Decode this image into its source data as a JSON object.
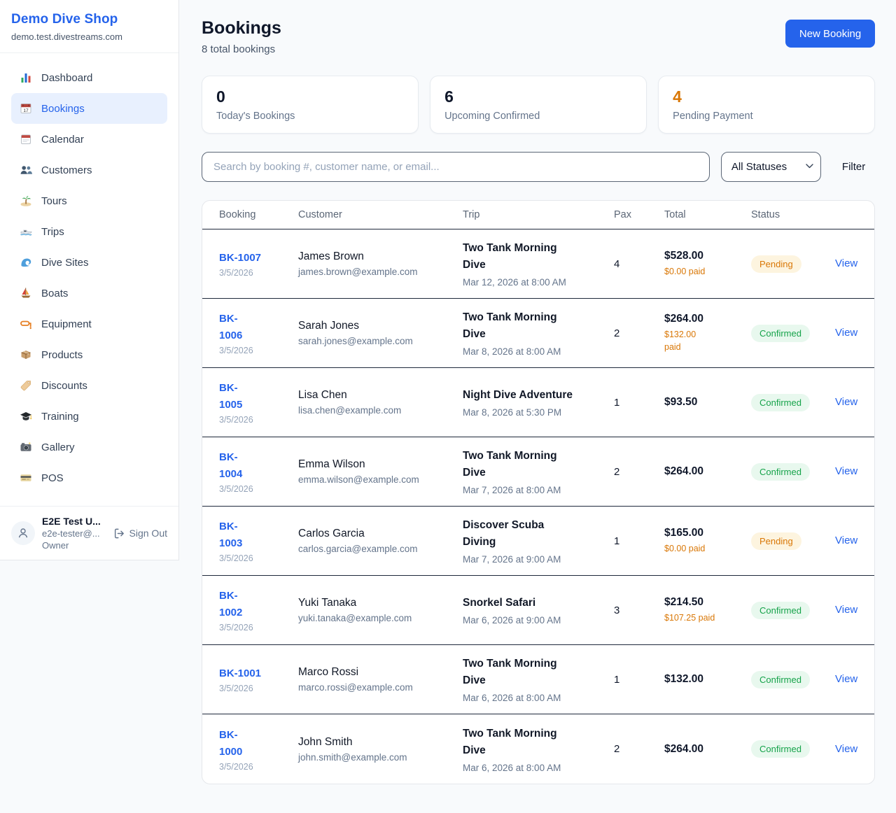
{
  "brand": {
    "name": "Demo Dive Shop",
    "domain": "demo.test.divestreams.com"
  },
  "sidebar": {
    "items": [
      {
        "label": "Dashboard",
        "icon": "bar-chart",
        "active": false
      },
      {
        "label": "Bookings",
        "icon": "calendar-day",
        "active": true
      },
      {
        "label": "Calendar",
        "icon": "calendar-pad",
        "active": false
      },
      {
        "label": "Customers",
        "icon": "people",
        "active": false
      },
      {
        "label": "Tours",
        "icon": "island",
        "active": false
      },
      {
        "label": "Trips",
        "icon": "speedboat",
        "active": false
      },
      {
        "label": "Dive Sites",
        "icon": "wave",
        "active": false
      },
      {
        "label": "Boats",
        "icon": "sailboat",
        "active": false
      },
      {
        "label": "Equipment",
        "icon": "dive-mask",
        "active": false
      },
      {
        "label": "Products",
        "icon": "box",
        "active": false
      },
      {
        "label": "Discounts",
        "icon": "tag",
        "active": false
      },
      {
        "label": "Training",
        "icon": "grad-cap",
        "active": false
      },
      {
        "label": "Gallery",
        "icon": "camera",
        "active": false
      },
      {
        "label": "POS",
        "icon": "credit-card",
        "active": false
      }
    ],
    "user": {
      "name": "E2E Test U...",
      "email": "e2e-tester@...",
      "role": "Owner",
      "sign_out_label": "Sign Out"
    }
  },
  "header": {
    "title": "Bookings",
    "subtitle": "8 total bookings",
    "new_booking_label": "New Booking"
  },
  "stats": [
    {
      "value": "0",
      "label": "Today's Bookings",
      "color": "#0f172a"
    },
    {
      "value": "6",
      "label": "Upcoming Confirmed",
      "color": "#0f172a"
    },
    {
      "value": "4",
      "label": "Pending Payment",
      "color": "#d97706"
    }
  ],
  "toolbar": {
    "search_placeholder": "Search by booking #, customer name, or email...",
    "status_filter": "All Statuses",
    "filter_label": "Filter"
  },
  "table": {
    "columns": [
      "Booking",
      "Customer",
      "Trip",
      "Pax",
      "Total",
      "Status"
    ],
    "view_label": "View",
    "rows": [
      {
        "id": "BK-1007",
        "id_wrap": false,
        "date": "3/5/2026",
        "name": "James Brown",
        "email": "james.brown@example.com",
        "trip": "Two Tank Morning Dive",
        "trip_wrap": true,
        "datetime": "Mar 12, 2026 at 8:00 AM",
        "pax": "4",
        "total": "$528.00",
        "paid": "$0.00 paid",
        "paid_wrap": false,
        "status": "Pending"
      },
      {
        "id": "BK-1006",
        "id_wrap": true,
        "date": "3/5/2026",
        "name": "Sarah Jones",
        "email": "sarah.jones@example.com",
        "trip": "Two Tank Morning Dive",
        "trip_wrap": true,
        "datetime": "Mar 8, 2026 at 8:00 AM",
        "pax": "2",
        "total": "$264.00",
        "paid": "$132.00 paid",
        "paid_wrap": true,
        "status": "Confirmed"
      },
      {
        "id": "BK-1005",
        "id_wrap": true,
        "date": "3/5/2026",
        "name": "Lisa Chen",
        "email": "lisa.chen@example.com",
        "trip": "Night Dive Adventure",
        "trip_wrap": false,
        "datetime": "Mar 8, 2026 at 5:30 PM",
        "pax": "1",
        "total": "$93.50",
        "paid": null,
        "paid_wrap": false,
        "status": "Confirmed"
      },
      {
        "id": "BK-1004",
        "id_wrap": true,
        "date": "3/5/2026",
        "name": "Emma Wilson",
        "email": "emma.wilson@example.com",
        "trip": "Two Tank Morning Dive",
        "trip_wrap": true,
        "datetime": "Mar 7, 2026 at 8:00 AM",
        "pax": "2",
        "total": "$264.00",
        "paid": null,
        "paid_wrap": false,
        "status": "Confirmed"
      },
      {
        "id": "BK-1003",
        "id_wrap": true,
        "date": "3/5/2026",
        "name": "Carlos Garcia",
        "email": "carlos.garcia@example.com",
        "trip": "Discover Scuba Diving",
        "trip_wrap": true,
        "datetime": "Mar 7, 2026 at 9:00 AM",
        "pax": "1",
        "total": "$165.00",
        "paid": "$0.00 paid",
        "paid_wrap": false,
        "status": "Pending"
      },
      {
        "id": "BK-1002",
        "id_wrap": true,
        "date": "3/5/2026",
        "name": "Yuki Tanaka",
        "email": "yuki.tanaka@example.com",
        "trip": "Snorkel Safari",
        "trip_wrap": false,
        "datetime": "Mar 6, 2026 at 9:00 AM",
        "pax": "3",
        "total": "$214.50",
        "paid": "$107.25 paid",
        "paid_wrap": false,
        "status": "Confirmed"
      },
      {
        "id": "BK-1001",
        "id_wrap": false,
        "date": "3/5/2026",
        "name": "Marco Rossi",
        "email": "marco.rossi@example.com",
        "trip": "Two Tank Morning Dive",
        "trip_wrap": true,
        "datetime": "Mar 6, 2026 at 8:00 AM",
        "pax": "1",
        "total": "$132.00",
        "paid": null,
        "paid_wrap": false,
        "status": "Confirmed"
      },
      {
        "id": "BK-1000",
        "id_wrap": true,
        "date": "3/5/2026",
        "name": "John Smith",
        "email": "john.smith@example.com",
        "trip": "Two Tank Morning Dive",
        "trip_wrap": true,
        "datetime": "Mar 6, 2026 at 8:00 AM",
        "pax": "2",
        "total": "$264.00",
        "paid": null,
        "paid_wrap": false,
        "status": "Confirmed"
      }
    ]
  },
  "colors": {
    "accent": "#2563eb",
    "pending": "#d97706",
    "confirmed": "#16a34a",
    "paid_highlight": "#d97706"
  }
}
